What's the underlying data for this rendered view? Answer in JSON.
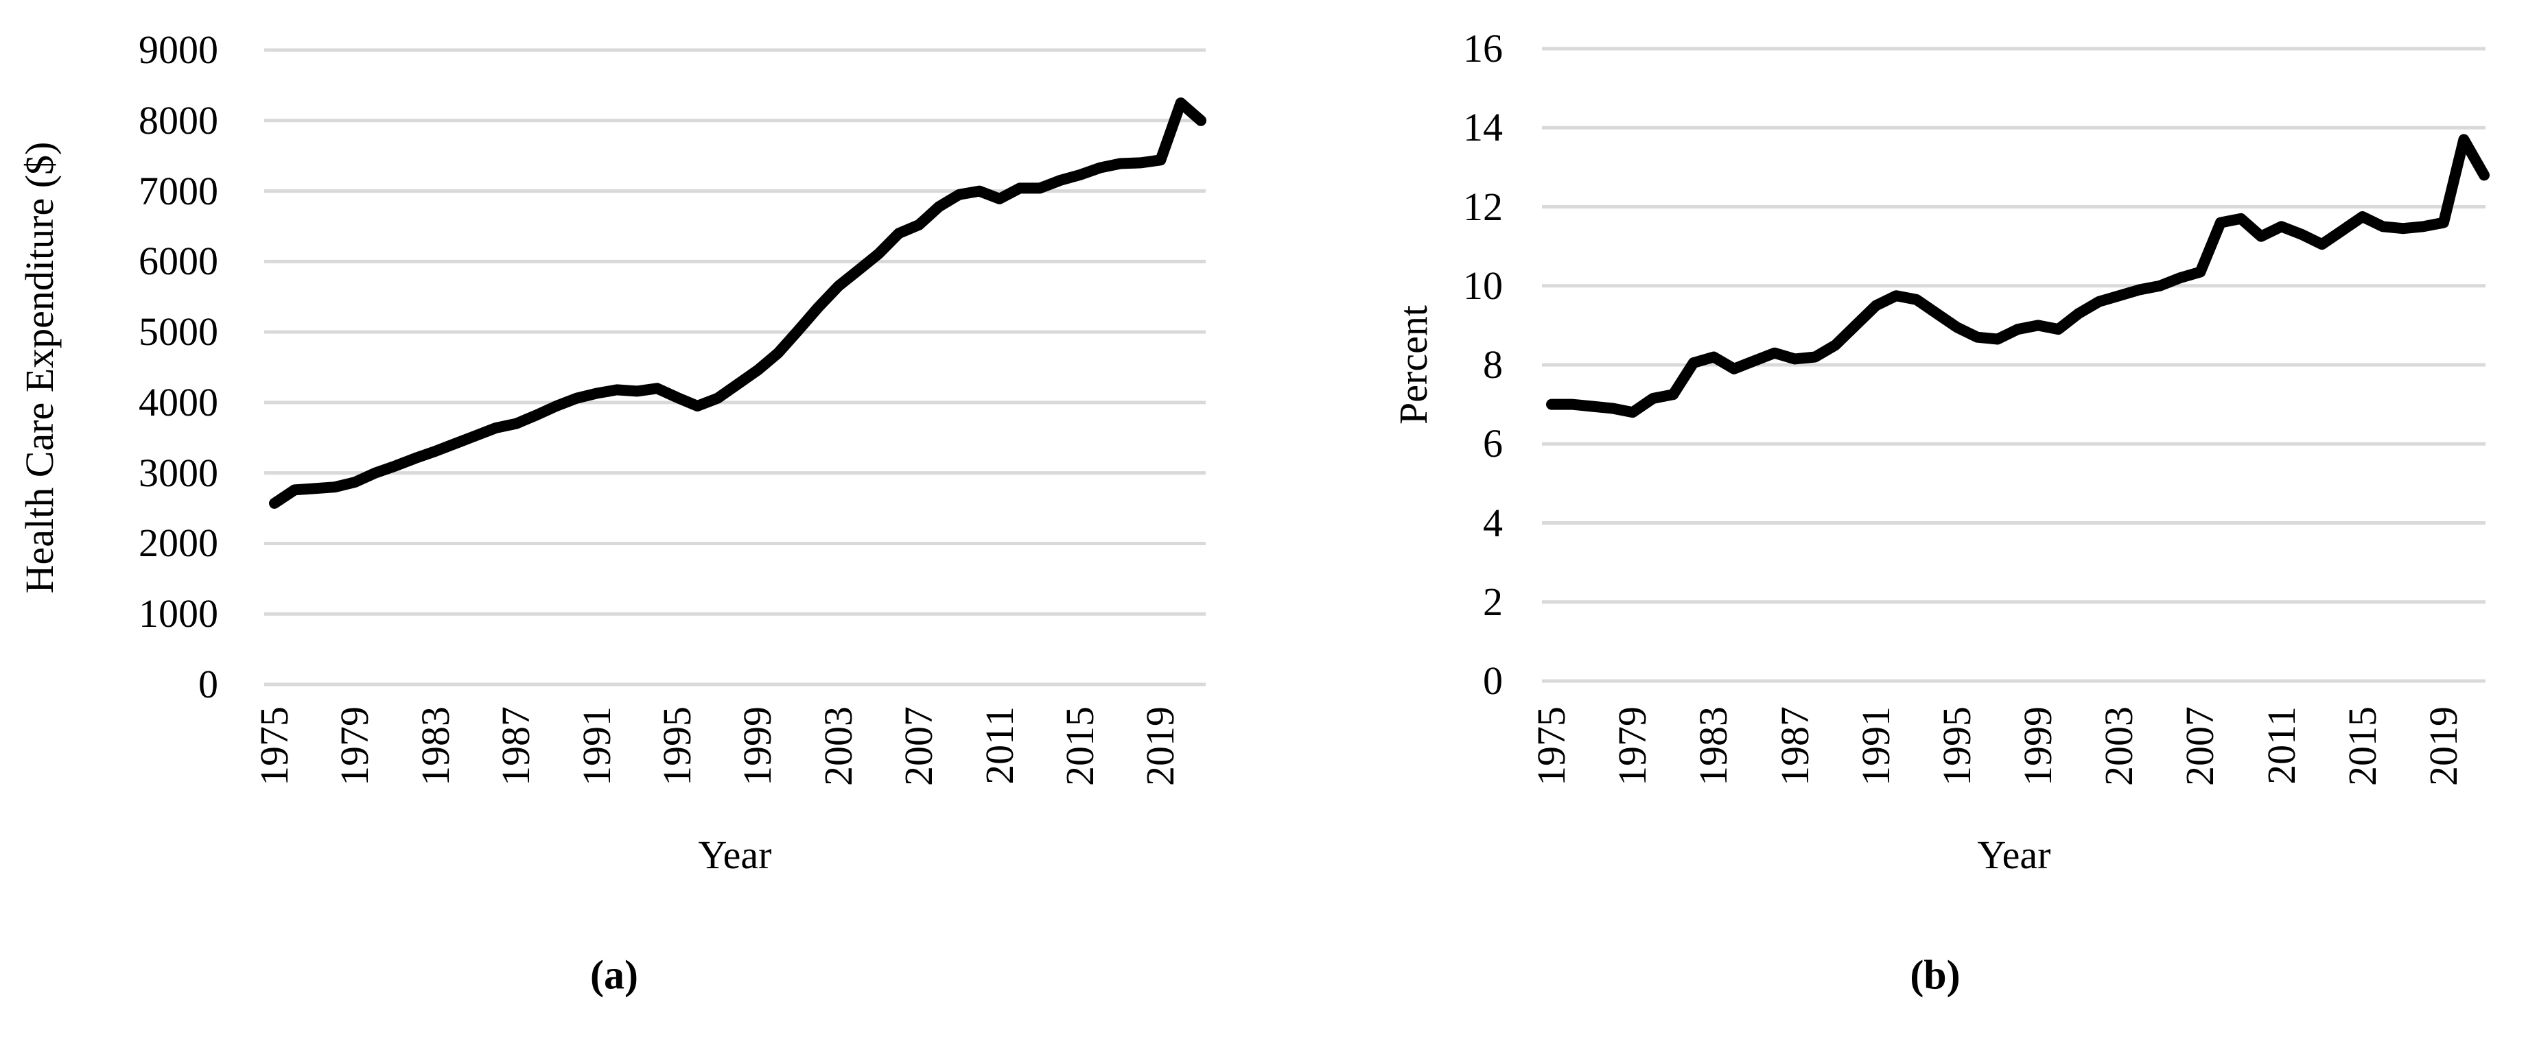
{
  "figure": {
    "background": "#ffffff"
  },
  "colors": {
    "line": "#000000",
    "gridline": "#d9d9d9",
    "text": "#000000"
  },
  "chart_data": [
    {
      "type": "line",
      "panel": "a",
      "caption": "(a)",
      "title": "",
      "xlabel": "Year",
      "ylabel": "Health Care Expenditure ($)",
      "ylim": [
        0,
        9000
      ],
      "ytick_step": 1000,
      "grid": "horizontal",
      "legend": "none",
      "xtick_labels": [
        1975,
        1979,
        1983,
        1987,
        1991,
        1995,
        1999,
        2003,
        2007,
        2011,
        2015,
        2019
      ],
      "x": [
        1975,
        1976,
        1977,
        1978,
        1979,
        1980,
        1981,
        1982,
        1983,
        1984,
        1985,
        1986,
        1987,
        1988,
        1989,
        1990,
        1991,
        1992,
        1993,
        1994,
        1995,
        1996,
        1997,
        1998,
        1999,
        2000,
        2001,
        2002,
        2003,
        2004,
        2005,
        2006,
        2007,
        2008,
        2009,
        2010,
        2011,
        2012,
        2013,
        2014,
        2015,
        2016,
        2017,
        2018,
        2019,
        2020,
        2021
      ],
      "values": [
        2570,
        2760,
        2780,
        2800,
        2870,
        3000,
        3100,
        3210,
        3310,
        3420,
        3530,
        3640,
        3700,
        3820,
        3950,
        4060,
        4130,
        4180,
        4160,
        4200,
        4070,
        3950,
        4060,
        4260,
        4460,
        4700,
        5020,
        5350,
        5650,
        5880,
        6110,
        6400,
        6520,
        6780,
        6950,
        7000,
        6890,
        7040,
        7040,
        7150,
        7230,
        7330,
        7390,
        7400,
        7440,
        8250,
        8000
      ]
    },
    {
      "type": "line",
      "panel": "b",
      "caption": "(b)",
      "title": "",
      "xlabel": "Year",
      "ylabel": "Percent",
      "ylim": [
        0,
        16
      ],
      "ytick_step": 2,
      "grid": "horizontal",
      "legend": "none",
      "xtick_labels": [
        1975,
        1979,
        1983,
        1987,
        1991,
        1995,
        1999,
        2003,
        2007,
        2011,
        2015,
        2019
      ],
      "x": [
        1975,
        1976,
        1977,
        1978,
        1979,
        1980,
        1981,
        1982,
        1983,
        1984,
        1985,
        1986,
        1987,
        1988,
        1989,
        1990,
        1991,
        1992,
        1993,
        1994,
        1995,
        1996,
        1997,
        1998,
        1999,
        2000,
        2001,
        2002,
        2003,
        2004,
        2005,
        2006,
        2007,
        2008,
        2009,
        2010,
        2011,
        2012,
        2013,
        2014,
        2015,
        2016,
        2017,
        2018,
        2019,
        2020,
        2021
      ],
      "values": [
        7.0,
        7.0,
        6.95,
        6.9,
        6.8,
        7.15,
        7.25,
        8.05,
        8.2,
        7.9,
        8.1,
        8.3,
        8.15,
        8.2,
        8.5,
        9.0,
        9.5,
        9.75,
        9.65,
        9.3,
        8.95,
        8.7,
        8.65,
        8.9,
        9.0,
        8.9,
        9.3,
        9.6,
        9.75,
        9.9,
        10.0,
        10.2,
        10.35,
        11.6,
        11.7,
        11.25,
        11.5,
        11.3,
        11.05,
        11.4,
        11.75,
        11.5,
        11.45,
        11.5,
        11.6,
        13.7,
        12.8
      ]
    }
  ]
}
